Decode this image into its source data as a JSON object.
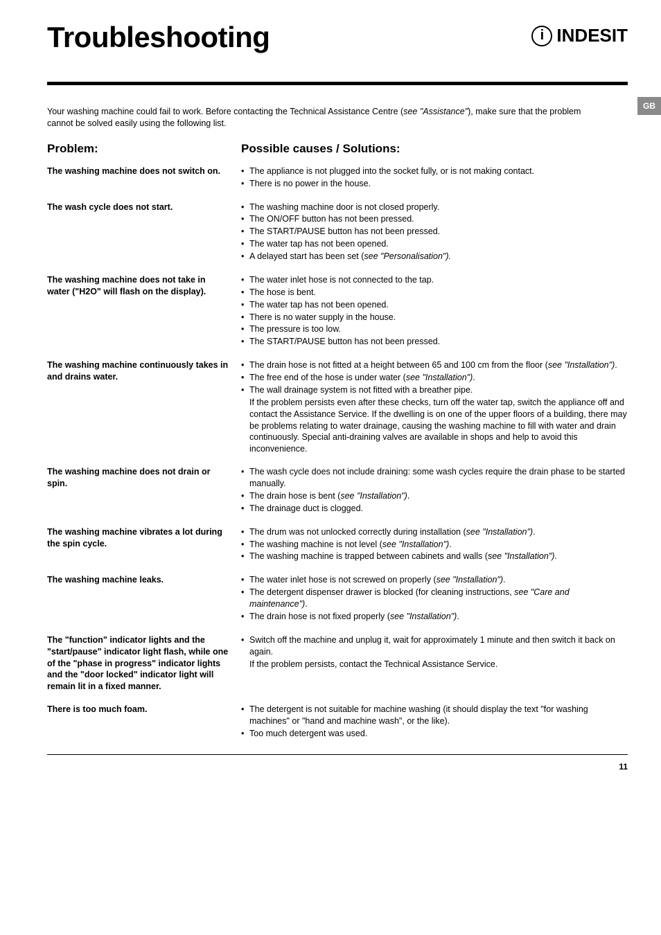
{
  "header": {
    "title": "Troubleshooting",
    "brand": "INDESIT",
    "lang_tab": "GB"
  },
  "intro": {
    "text_a": "Your washing machine could fail to work. Before contacting the Technical Assistance Centre (",
    "ref": "see \"Assistance\"",
    "text_b": "), make sure that the problem cannot be solved easily using the following list."
  },
  "col_headers": {
    "left": "Problem:",
    "right": "Possible causes / Solutions:"
  },
  "rows": [
    {
      "problem": "The washing machine does not switch on.",
      "items": [
        {
          "t": "The appliance is not plugged into the socket fully, or is not making contact."
        },
        {
          "t": "There is no power in the house."
        }
      ]
    },
    {
      "problem": "The wash cycle does not start.",
      "items": [
        {
          "t": "The washing machine door is not closed properly."
        },
        {
          "t": "The ON/OFF button has not been pressed."
        },
        {
          "t": "The START/PAUSE button has not been pressed."
        },
        {
          "t": "The water tap has not been opened."
        },
        {
          "t": "A delayed start has been set (",
          "ref": "see \"Personalisation\")."
        }
      ]
    },
    {
      "problem": "The washing machine does not take in water (\"H2O\" will flash on the display).",
      "items": [
        {
          "t": "The water inlet hose is not connected to the tap."
        },
        {
          "t": "The hose is bent."
        },
        {
          "t": "The water tap has not been opened."
        },
        {
          "t": "There is no water supply in the house."
        },
        {
          "t": "The pressure is too low."
        },
        {
          "t": "The START/PAUSE button has not been pressed."
        }
      ]
    },
    {
      "problem": "The washing machine continuously takes in and drains water.",
      "items": [
        {
          "t": "The drain hose is not fitted at a height between 65 and 100 cm from the floor (",
          "ref": "see \"Installation\")",
          "tail": "."
        },
        {
          "t": "The free end of the hose is under water (",
          "ref": "see \"Installation\")",
          "tail": "."
        },
        {
          "t": "The wall drainage system is not fitted with a breather pipe."
        }
      ],
      "note": "If the problem persists even after these checks, turn off the water tap, switch the appliance off and contact the Assistance Service. If the dwelling is on one of the upper floors of a building, there may be problems relating to water drainage, causing the washing machine to fill with water and drain continuously. Special anti-draining valves are available in shops and help to avoid this inconvenience."
    },
    {
      "problem": "The washing machine does not drain or spin.",
      "items": [
        {
          "t": "The wash cycle does not include draining: some wash cycles require the drain phase to be started manually."
        },
        {
          "t": "The drain hose is bent (",
          "ref": "see \"Installation\")",
          "tail": "."
        },
        {
          "t": "The drainage duct is clogged."
        }
      ]
    },
    {
      "problem": "The washing machine vibrates a lot during the spin cycle.",
      "items": [
        {
          "t": "The drum was not unlocked correctly during installation (",
          "ref": "see \"Installation\")",
          "tail": "."
        },
        {
          "t": "The washing machine is not level (",
          "ref": "see \"Installation\")",
          "tail": "."
        },
        {
          "t": "The washing machine is trapped between cabinets and walls (",
          "ref": "see \"Installation\")",
          "tail": "."
        }
      ]
    },
    {
      "problem": "The washing machine leaks.",
      "items": [
        {
          "t": "The water inlet hose is not screwed on properly (",
          "ref": "see \"Installation\")",
          "tail": "."
        },
        {
          "t": "The detergent dispenser drawer is blocked (for cleaning instructions, ",
          "ref": "see \"Care and maintenance\")",
          "tail": "."
        },
        {
          "t": "The drain hose is not fixed properly (",
          "ref": "see \"Installation\")",
          "tail": "."
        }
      ]
    },
    {
      "problem": "The \"function\" indicator lights and the \"start/pause\" indicator light flash, while one of the \"phase in progress\" indicator lights and the \"door locked\" indicator light will remain lit in a fixed manner.",
      "items": [
        {
          "t": "Switch off the machine and unplug it, wait for approximately 1 minute and then switch it back on again."
        }
      ],
      "note": "If the problem persists, contact the Technical Assistance Service."
    },
    {
      "problem": "There is too much foam.",
      "items": [
        {
          "t": "The detergent is not suitable for machine washing (it should display the text \"for washing machines\" or \"hand and machine wash\", or the like)."
        },
        {
          "t": "Too much detergent was used."
        }
      ]
    }
  ],
  "page_number": "11"
}
